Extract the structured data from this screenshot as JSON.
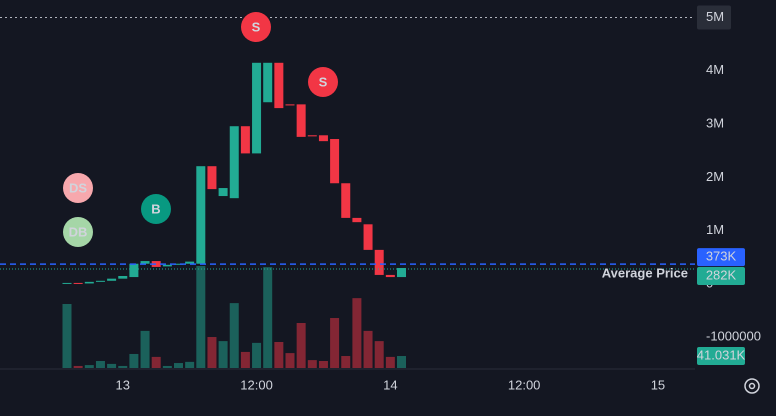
{
  "chart_data": {
    "type": "candlestick",
    "open": [
      10000,
      20000,
      10000,
      40000,
      60000,
      100000,
      130000,
      380000,
      430000,
      330000,
      360000,
      380000,
      380000,
      2210000,
      1650000,
      1610000,
      2960000,
      2450000,
      3410000,
      4150000,
      3370000,
      3370000,
      2790000,
      2790000,
      2720000,
      1890000,
      1240000,
      1120000,
      640000,
      170000,
      130000
    ],
    "close": [
      20000,
      5000,
      40000,
      60000,
      100000,
      150000,
      380000,
      430000,
      320000,
      360000,
      380000,
      420000,
      2210000,
      1780000,
      1800000,
      2960000,
      2450000,
      4150000,
      4150000,
      3300000,
      3350000,
      2760000,
      2770000,
      2680000,
      1890000,
      1240000,
      1160000,
      640000,
      170000,
      130000,
      300000
    ],
    "volume": [
      219000,
      7000,
      10000,
      24000,
      14000,
      7000,
      48000,
      127000,
      38000,
      7000,
      17000,
      21000,
      349000,
      106000,
      92000,
      222000,
      55000,
      86000,
      345000,
      89000,
      51000,
      154000,
      27000,
      24000,
      171000,
      41000,
      239000,
      127000,
      92000,
      38000,
      41031
    ],
    "volume_label": "41.031K",
    "up_color": "#22ab94",
    "down_color": "#f23645",
    "ylim": [
      -1576000,
      5328000
    ],
    "yticks": [
      {
        "value": 5000000,
        "label": "5M"
      },
      {
        "value": 4000000,
        "label": "4M"
      },
      {
        "value": 3000000,
        "label": "3M"
      },
      {
        "value": 2000000,
        "label": "2M"
      },
      {
        "value": 1000000,
        "label": "1M"
      },
      0,
      -1000000
    ],
    "x_labels": [
      "13",
      "12:00",
      "14",
      "12:00",
      "15"
    ],
    "price_lines": [
      {
        "value": 373000,
        "label": "373K",
        "color": "#2962ff"
      },
      {
        "value": 282000,
        "label": "282K",
        "color": "#22ab94",
        "name": "Average Price"
      }
    ],
    "markers": [
      {
        "label": "S",
        "color": "#f23645"
      },
      {
        "label": "S",
        "color": "#f23645"
      },
      {
        "label": "B",
        "color": "#089981"
      },
      {
        "label": "DS",
        "color": "#f7a8ad"
      },
      {
        "label": "DB",
        "color": "#a5d6a7"
      }
    ]
  }
}
